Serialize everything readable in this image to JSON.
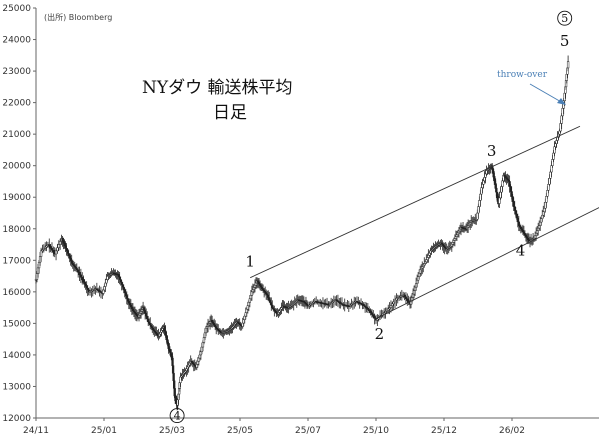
{
  "source": "(出所) Bloomberg",
  "title_line1": "NYダウ 輸送株平均",
  "title_line2": "日足",
  "annotation": "throw-over",
  "colors": {
    "candle": "#222222",
    "channel": "#333333",
    "note": "#4a7fb5"
  },
  "chart_data": {
    "type": "line",
    "title": "NYダウ 輸送株平均 日足",
    "xlabel": "",
    "ylabel": "",
    "ylim": [
      12000,
      25000
    ],
    "yticks": [
      12000,
      13000,
      14000,
      15000,
      16000,
      17000,
      18000,
      19000,
      20000,
      21000,
      22000,
      23000,
      24000,
      25000
    ],
    "xticks": [
      {
        "label": "24/11",
        "t": 0
      },
      {
        "label": "25/01",
        "t": 2
      },
      {
        "label": "25/03",
        "t": 4
      },
      {
        "label": "25/05",
        "t": 6
      },
      {
        "label": "25/07",
        "t": 8
      },
      {
        "label": "25/10",
        "t": 10
      },
      {
        "label": "25/12",
        "t": 12
      },
      {
        "label": "26/02",
        "t": 14
      }
    ],
    "series": [
      {
        "points": [
          [
            0.0,
            16400
          ],
          [
            0.15,
            17300
          ],
          [
            0.35,
            17500
          ],
          [
            0.55,
            17200
          ],
          [
            0.75,
            17700
          ],
          [
            0.9,
            17300
          ],
          [
            1.05,
            16900
          ],
          [
            1.2,
            16700
          ],
          [
            1.4,
            16300
          ],
          [
            1.55,
            16000
          ],
          [
            1.75,
            16100
          ],
          [
            1.95,
            15950
          ],
          [
            2.1,
            16500
          ],
          [
            2.25,
            16600
          ],
          [
            2.4,
            16550
          ],
          [
            2.55,
            16150
          ],
          [
            2.7,
            15700
          ],
          [
            2.85,
            15400
          ],
          [
            3.0,
            15200
          ],
          [
            3.15,
            15500
          ],
          [
            3.3,
            15050
          ],
          [
            3.45,
            14800
          ],
          [
            3.6,
            14600
          ],
          [
            3.75,
            14900
          ],
          [
            3.9,
            14200
          ],
          [
            4.0,
            13900
          ],
          [
            4.08,
            12700
          ],
          [
            4.15,
            12400
          ],
          [
            4.25,
            13300
          ],
          [
            4.4,
            13500
          ],
          [
            4.55,
            13800
          ],
          [
            4.7,
            13600
          ],
          [
            4.85,
            14100
          ],
          [
            5.0,
            14850
          ],
          [
            5.15,
            15100
          ],
          [
            5.3,
            14850
          ],
          [
            5.45,
            14700
          ],
          [
            5.6,
            14750
          ],
          [
            5.75,
            14850
          ],
          [
            5.9,
            15050
          ],
          [
            6.05,
            14900
          ],
          [
            6.2,
            15450
          ],
          [
            6.35,
            16000
          ],
          [
            6.5,
            16350
          ],
          [
            6.65,
            16100
          ],
          [
            6.8,
            15900
          ],
          [
            6.95,
            15500
          ],
          [
            7.1,
            15300
          ],
          [
            7.25,
            15550
          ],
          [
            7.4,
            15500
          ],
          [
            7.55,
            15600
          ],
          [
            7.7,
            15750
          ],
          [
            7.85,
            15700
          ],
          [
            8.0,
            15550
          ],
          [
            8.2,
            15700
          ],
          [
            8.4,
            15650
          ],
          [
            8.6,
            15600
          ],
          [
            8.8,
            15750
          ],
          [
            9.0,
            15600
          ],
          [
            9.2,
            15550
          ],
          [
            9.4,
            15700
          ],
          [
            9.6,
            15600
          ],
          [
            9.8,
            15400
          ],
          [
            10.0,
            15100
          ],
          [
            10.2,
            15300
          ],
          [
            10.4,
            15500
          ],
          [
            10.6,
            15800
          ],
          [
            10.8,
            15900
          ],
          [
            11.0,
            15600
          ],
          [
            11.15,
            16150
          ],
          [
            11.3,
            16700
          ],
          [
            11.45,
            16950
          ],
          [
            11.6,
            17300
          ],
          [
            11.75,
            17450
          ],
          [
            11.9,
            17550
          ],
          [
            12.05,
            17350
          ],
          [
            12.2,
            17450
          ],
          [
            12.35,
            17750
          ],
          [
            12.5,
            18050
          ],
          [
            12.65,
            18000
          ],
          [
            12.8,
            18250
          ],
          [
            12.95,
            18300
          ],
          [
            13.1,
            19300
          ],
          [
            13.25,
            19850
          ],
          [
            13.4,
            20000
          ],
          [
            13.5,
            19400
          ],
          [
            13.6,
            18800
          ],
          [
            13.75,
            19700
          ],
          [
            13.9,
            19500
          ],
          [
            14.05,
            18700
          ],
          [
            14.2,
            18100
          ],
          [
            14.35,
            17850
          ],
          [
            14.5,
            17600
          ],
          [
            14.65,
            17700
          ],
          [
            14.8,
            18100
          ],
          [
            14.95,
            18650
          ],
          [
            15.1,
            19600
          ],
          [
            15.25,
            20600
          ],
          [
            15.4,
            21100
          ],
          [
            15.55,
            22300
          ],
          [
            15.65,
            23300
          ]
        ]
      }
    ],
    "channel_lines": [
      {
        "from": [
          6.3,
          16450
        ],
        "to": [
          16.0,
          21250
        ]
      },
      {
        "from": [
          10.0,
          15150
        ],
        "to": [
          16.8,
          18800
        ]
      }
    ],
    "wave_labels": [
      {
        "text": "1",
        "t": 6.3,
        "v": 16800,
        "circled": false
      },
      {
        "text": "2",
        "t": 10.1,
        "v": 14500,
        "circled": false
      },
      {
        "text": "3",
        "t": 13.4,
        "v": 20300,
        "circled": false
      },
      {
        "text": "4",
        "t": 14.25,
        "v": 17150,
        "circled": false
      },
      {
        "text": "4",
        "t": 4.15,
        "v": 11950,
        "circled": true
      },
      {
        "text": "5",
        "t": 15.55,
        "v": 23800,
        "circled": false
      },
      {
        "text": "5",
        "t": 15.55,
        "v": 24550,
        "circled": true
      }
    ]
  }
}
